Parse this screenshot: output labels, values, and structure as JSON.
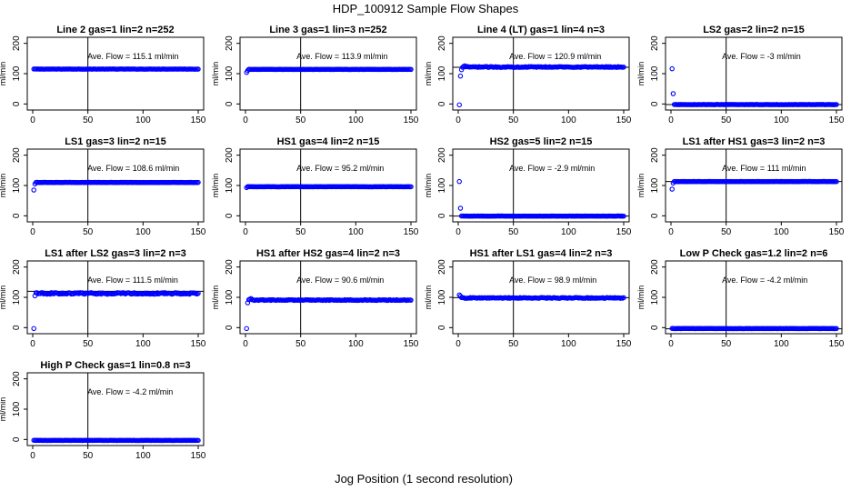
{
  "figure": {
    "title": "HDP_100912  Sample Flow Shapes",
    "xlabel": "Jog Position (1 second resolution)",
    "ylabel": "ml/min",
    "marker_color": "#0000ff",
    "annotation_prefix": "Ave. Flow = ",
    "annotation_unit": " ml/min"
  },
  "chart_data": [
    {
      "type": "scatter",
      "title": "Line 2 gas=1 lin=2 n=252",
      "ave_flow": "115.1",
      "level": 115.1,
      "start": [],
      "noise": "none",
      "vline": 50,
      "hline": null,
      "xlim": [
        0,
        150
      ],
      "ylim": [
        -20,
        220
      ],
      "xticks": [
        0,
        50,
        100,
        150
      ],
      "yticks": [
        0,
        100,
        200
      ]
    },
    {
      "type": "scatter",
      "title": "Line 3 gas=1 lin=3 n=252",
      "ave_flow": "113.9",
      "level": 114,
      "start": [
        [
          1,
          104
        ],
        [
          2,
          110
        ]
      ],
      "noise": "none",
      "vline": 50,
      "hline": null,
      "xlim": [
        0,
        150
      ],
      "ylim": [
        -20,
        220
      ],
      "xticks": [
        0,
        50,
        100,
        150
      ],
      "yticks": [
        0,
        100,
        200
      ]
    },
    {
      "type": "scatter",
      "title": "Line 4 (LT) gas=1 lin=4 n=3",
      "ave_flow": "120.9",
      "level": 122,
      "start": [
        [
          1,
          -3
        ],
        [
          2,
          92
        ],
        [
          3,
          113
        ],
        [
          4,
          121
        ],
        [
          5,
          124
        ],
        [
          6,
          126
        ]
      ],
      "noise": "small",
      "vline": 50,
      "hline": 121,
      "xlim": [
        0,
        150
      ],
      "ylim": [
        -20,
        220
      ],
      "xticks": [
        0,
        50,
        100,
        150
      ],
      "yticks": [
        0,
        100,
        200
      ]
    },
    {
      "type": "scatter",
      "title": "LS2 gas=2 lin=2 n=15",
      "ave_flow": "-3",
      "level": -2,
      "start": [
        [
          1,
          116
        ],
        [
          2,
          34
        ]
      ],
      "noise": "none",
      "vline": 50,
      "hline": -2,
      "xlim": [
        0,
        150
      ],
      "ylim": [
        -20,
        220
      ],
      "xticks": [
        0,
        50,
        100,
        150
      ],
      "yticks": [
        0,
        100,
        200
      ]
    },
    {
      "type": "scatter",
      "title": "LS1 gas=3 lin=2 n=15",
      "ave_flow": "108.6",
      "level": 110,
      "start": [
        [
          1,
          85
        ],
        [
          2,
          105
        ]
      ],
      "noise": "none",
      "vline": 50,
      "hline": null,
      "xlim": [
        0,
        150
      ],
      "ylim": [
        -20,
        220
      ],
      "xticks": [
        0,
        50,
        100,
        150
      ],
      "yticks": [
        0,
        100,
        200
      ]
    },
    {
      "type": "scatter",
      "title": "HS1 gas=4 lin=2 n=15",
      "ave_flow": "95.2",
      "level": 96,
      "start": [
        [
          1,
          93
        ]
      ],
      "noise": "none",
      "vline": 50,
      "hline": null,
      "xlim": [
        0,
        150
      ],
      "ylim": [
        -20,
        220
      ],
      "xticks": [
        0,
        50,
        100,
        150
      ],
      "yticks": [
        0,
        100,
        200
      ]
    },
    {
      "type": "scatter",
      "title": "HS2 gas=5 lin=2 n=15",
      "ave_flow": "-2.9",
      "level": -1,
      "start": [
        [
          1,
          113
        ],
        [
          2,
          25
        ]
      ],
      "noise": "none",
      "vline": 50,
      "hline": -1,
      "xlim": [
        0,
        150
      ],
      "ylim": [
        -20,
        220
      ],
      "xticks": [
        0,
        50,
        100,
        150
      ],
      "yticks": [
        0,
        100,
        200
      ]
    },
    {
      "type": "scatter",
      "title": "LS1 after HS1 gas=3 lin=2 n=3",
      "ave_flow": "111",
      "level": 113,
      "start": [
        [
          1,
          88
        ],
        [
          2,
          108
        ]
      ],
      "noise": "none",
      "vline": 50,
      "hline": 113,
      "xlim": [
        0,
        150
      ],
      "ylim": [
        -20,
        220
      ],
      "xticks": [
        0,
        50,
        100,
        150
      ],
      "yticks": [
        0,
        100,
        200
      ]
    },
    {
      "type": "scatter",
      "title": "LS1 after LS2 gas=3 lin=2 n=3",
      "ave_flow": "111.5",
      "level": 113,
      "start": [
        [
          1,
          -3
        ],
        [
          2,
          105
        ]
      ],
      "noise": "medium",
      "vline": 50,
      "hline": 120,
      "xlim": [
        0,
        150
      ],
      "ylim": [
        -20,
        220
      ],
      "xticks": [
        0,
        50,
        100,
        150
      ],
      "yticks": [
        0,
        100,
        200
      ]
    },
    {
      "type": "scatter",
      "title": "HS1 after HS2 gas=4 lin=2 n=3",
      "ave_flow": "90.6",
      "level": 91,
      "start": [
        [
          1,
          -3
        ],
        [
          2,
          82
        ],
        [
          3,
          92
        ],
        [
          4,
          94
        ],
        [
          5,
          96
        ]
      ],
      "noise": "small",
      "vline": 50,
      "hline": null,
      "xlim": [
        0,
        150
      ],
      "ylim": [
        -20,
        220
      ],
      "xticks": [
        0,
        50,
        100,
        150
      ],
      "yticks": [
        0,
        100,
        200
      ]
    },
    {
      "type": "scatter",
      "title": "HS1 after LS1 gas=4 lin=2 n=3",
      "ave_flow": "98.9",
      "level": 98,
      "start": [
        [
          1,
          108
        ],
        [
          2,
          104
        ]
      ],
      "noise": "small",
      "vline": 50,
      "hline": 99,
      "xlim": [
        0,
        150
      ],
      "ylim": [
        -20,
        220
      ],
      "xticks": [
        0,
        50,
        100,
        150
      ],
      "yticks": [
        0,
        100,
        200
      ]
    },
    {
      "type": "scatter",
      "title": "Low P Check gas=1.2 lin=2 n=6",
      "ave_flow": "-4.2",
      "level": -3,
      "start": [],
      "noise": "none",
      "vline": 50,
      "hline": -4,
      "xlim": [
        0,
        150
      ],
      "ylim": [
        -20,
        220
      ],
      "xticks": [
        0,
        50,
        100,
        150
      ],
      "yticks": [
        0,
        100,
        200
      ]
    },
    {
      "type": "scatter",
      "title": "High P Check gas=1 lin=0.8 n=3",
      "ave_flow": "-4.2",
      "level": -3,
      "start": [],
      "noise": "none",
      "vline": 50,
      "hline": null,
      "xlim": [
        0,
        150
      ],
      "ylim": [
        -20,
        220
      ],
      "xticks": [
        0,
        50,
        100,
        150
      ],
      "yticks": [
        0,
        100,
        200
      ]
    }
  ]
}
